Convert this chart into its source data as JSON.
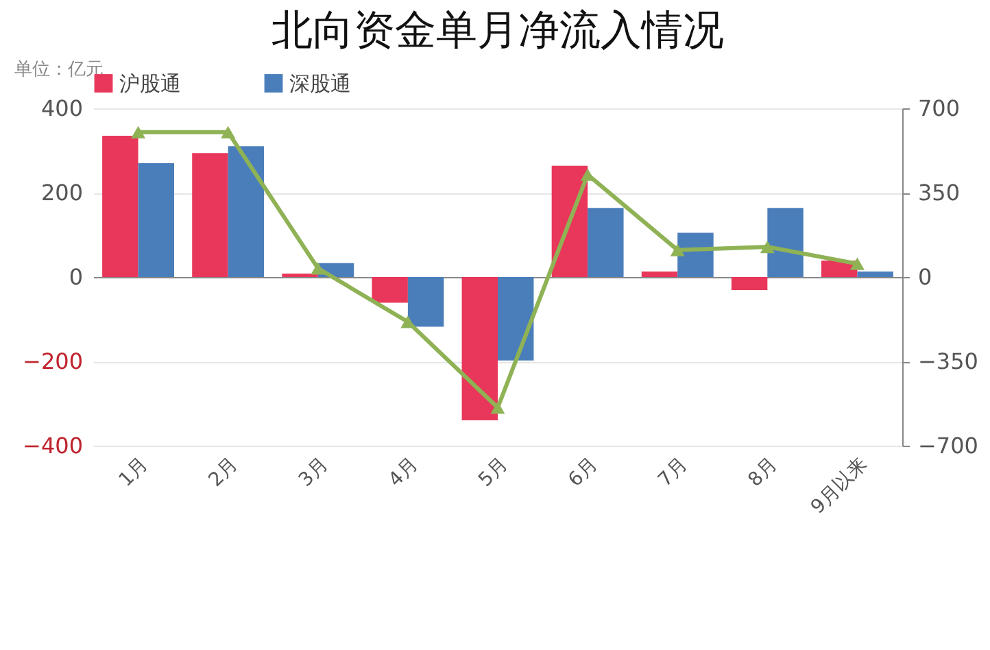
{
  "chart_data": {
    "type": "bar",
    "title": "北向资金单月净流入情况",
    "ylabel": "单位：亿元",
    "categories": [
      "1月",
      "2月",
      "3月",
      "4月",
      "5月",
      "6月",
      "7月",
      "8月",
      "9月以来"
    ],
    "series": [
      {
        "name": "沪股通",
        "color": "#e8375a",
        "values": [
          335,
          294,
          8,
          -61,
          -340,
          264,
          13,
          -31,
          39
        ]
      },
      {
        "name": "深股通",
        "color": "#4a7ebb",
        "values": [
          270,
          310,
          33,
          -118,
          -198,
          164,
          105,
          164,
          13
        ]
      },
      {
        "type": "line",
        "axis": "y2",
        "color": "#8fb255",
        "marker": "triangle",
        "values": [
          601,
          601,
          36,
          -186,
          -542,
          425,
          112,
          125,
          55
        ]
      }
    ],
    "ylim": [
      -400,
      400
    ],
    "yticks": [
      -400,
      -200,
      0,
      200,
      400
    ],
    "y2lim": [
      -700,
      700
    ],
    "y2ticks": [
      -700,
      -350,
      0,
      350,
      700
    ],
    "grid": "y",
    "legend": "top"
  }
}
